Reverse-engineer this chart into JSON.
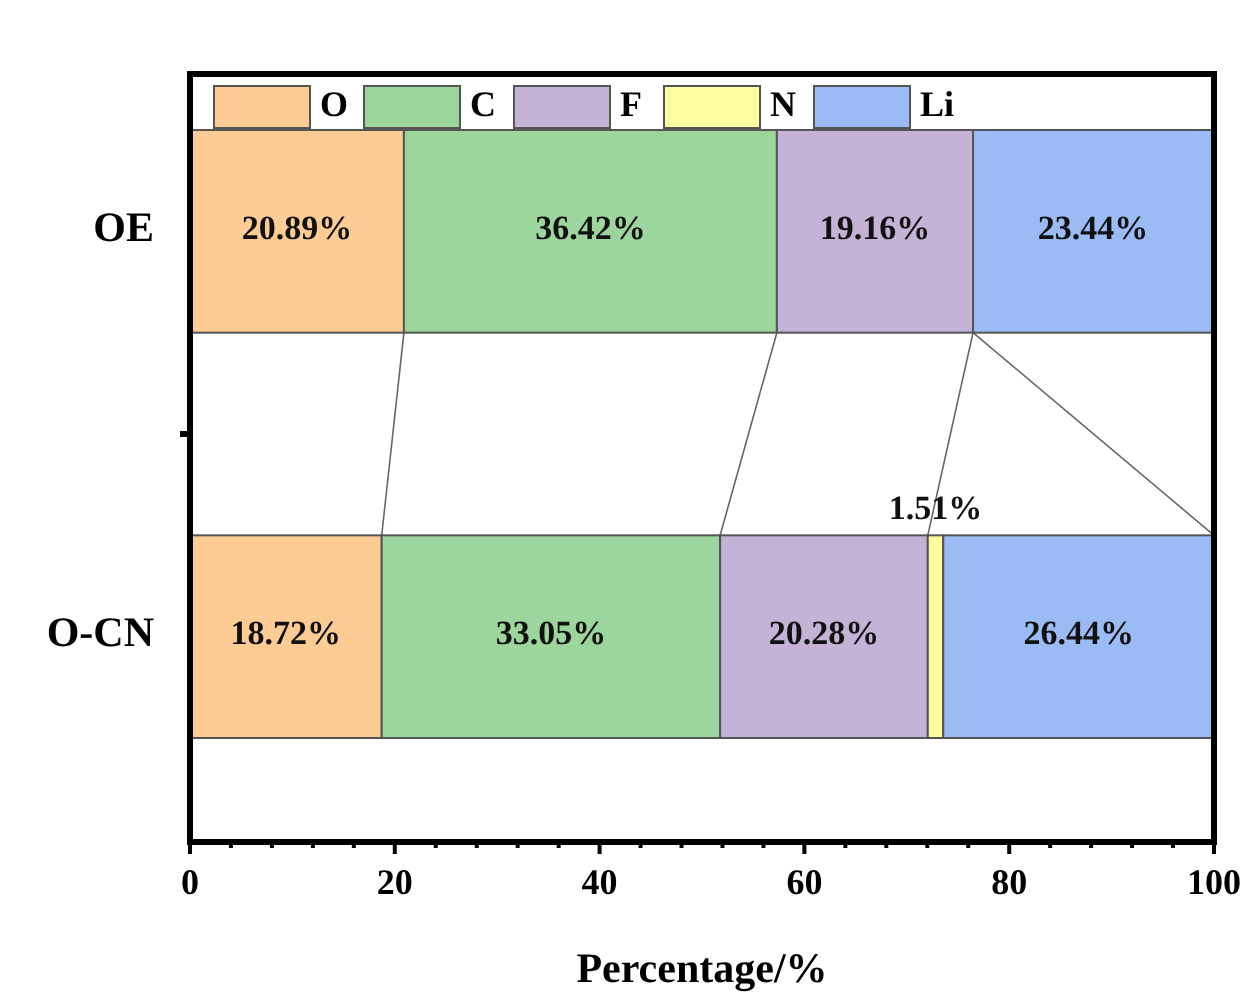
{
  "chart_data": {
    "type": "bar",
    "orientation": "horizontal",
    "stacked": true,
    "categories": [
      "OE",
      "O-CN"
    ],
    "xlabel": "Percentage/%",
    "xlim": [
      0,
      100
    ],
    "xticks": [
      0,
      {
        "value": 4,
        "label": null
      },
      {
        "value": 8,
        "label": null
      },
      {
        "value": 12,
        "label": null
      },
      {
        "value": 16,
        "label": null
      },
      20,
      {
        "value": 24,
        "label": null
      },
      {
        "value": 28,
        "label": null
      },
      {
        "value": 32,
        "label": null
      },
      {
        "value": 36,
        "label": null
      },
      40,
      {
        "value": 44,
        "label": null
      },
      {
        "value": 48,
        "label": null
      },
      {
        "value": 52,
        "label": null
      },
      {
        "value": 56,
        "label": null
      },
      60,
      {
        "value": 64,
        "label": null
      },
      {
        "value": 68,
        "label": null
      },
      {
        "value": 72,
        "label": null
      },
      {
        "value": 76,
        "label": null
      },
      80,
      {
        "value": 84,
        "label": null
      },
      {
        "value": 88,
        "label": null
      },
      {
        "value": 92,
        "label": null
      },
      {
        "value": 96,
        "label": null
      },
      100
    ],
    "legend": "top",
    "grid": false,
    "series": [
      {
        "name": "O",
        "color": "#fdcb94",
        "values": [
          20.89,
          18.72
        ],
        "value_labels": [
          "20.89%",
          "18.72%"
        ]
      },
      {
        "name": "C",
        "color": "#9dd69c",
        "values": [
          36.42,
          33.05
        ],
        "value_labels": [
          "36.42%",
          "33.05%"
        ]
      },
      {
        "name": "F",
        "color": "#c5b3d7",
        "values": [
          19.16,
          20.28
        ],
        "value_labels": [
          "19.16%",
          "20.28%"
        ]
      },
      {
        "name": "N",
        "color": "#fefea0",
        "values": [
          null,
          1.51
        ],
        "value_labels": [
          null,
          "1.51%"
        ]
      },
      {
        "name": "Li",
        "color": "#9bbbf5",
        "values": [
          23.44,
          26.44
        ],
        "value_labels": [
          "23.44%",
          "26.44%"
        ]
      }
    ]
  }
}
